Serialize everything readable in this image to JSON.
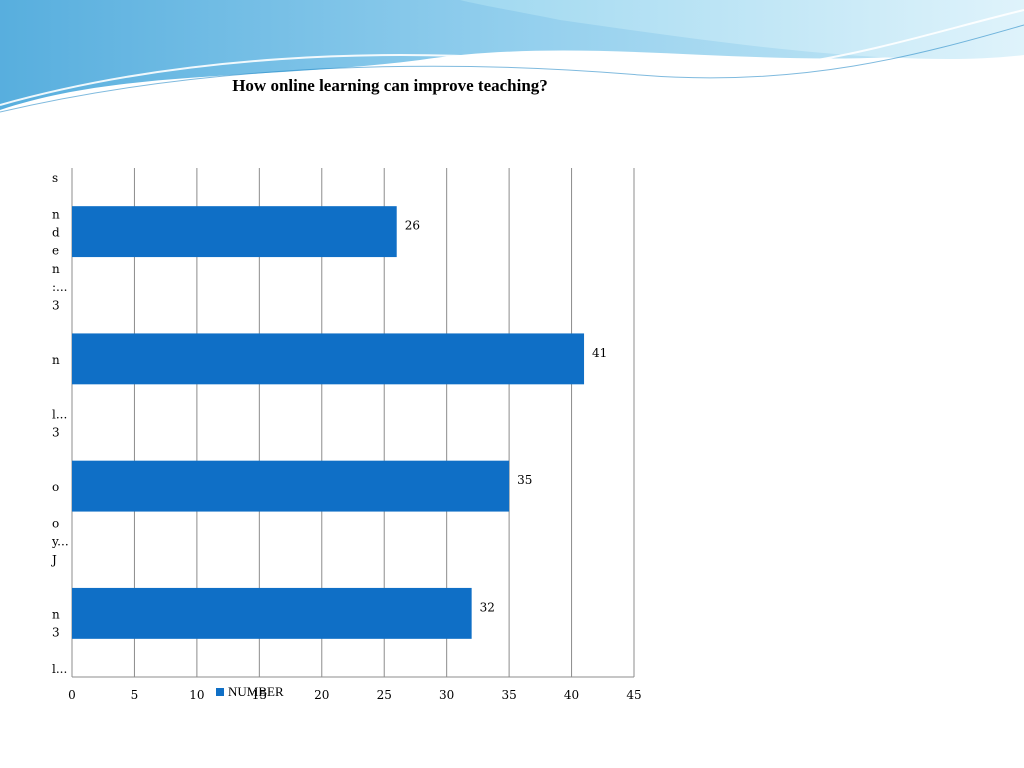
{
  "chart_data": {
    "type": "bar",
    "orientation": "horizontal",
    "title": "How online learning can improve teaching?",
    "categories": [
      "",
      "",
      "",
      ""
    ],
    "category_label_fragments": [
      [
        "s",
        "",
        "n",
        "d",
        "e",
        "n",
        ":..."
      ],
      [
        "3",
        "",
        "",
        "n",
        "",
        "",
        "l..."
      ],
      [
        "3",
        "",
        "",
        "o",
        "",
        "o",
        "y..."
      ],
      [
        "J",
        "",
        "",
        "n",
        "3",
        "",
        "l..."
      ]
    ],
    "series": [
      {
        "name": "NUMBER",
        "values": [
          26,
          41,
          35,
          32
        ],
        "color": "#0f6fc6"
      }
    ],
    "xlim": [
      0,
      45
    ],
    "xticks": [
      0,
      5,
      10,
      15,
      20,
      25,
      30,
      35,
      40,
      45
    ],
    "grid": true,
    "legend_position": "bottom"
  }
}
